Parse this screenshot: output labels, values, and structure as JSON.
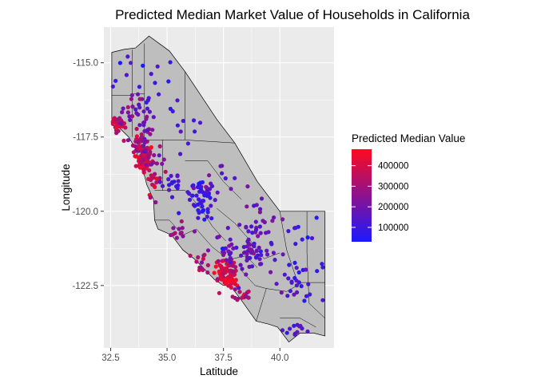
{
  "chart_data": {
    "type": "scatter",
    "title": "Predicted Median Market Value of Households in California",
    "xlabel": "Latitude",
    "ylabel": "Longitude",
    "xlim": [
      32.2,
      42.4
    ],
    "ylim": [
      -124.6,
      -113.8
    ],
    "y_reversed": true,
    "x_ticks": [
      "32.5",
      "35.0",
      "37.5",
      "40.0"
    ],
    "x_tick_values": [
      32.5,
      35.0,
      37.5,
      40.0
    ],
    "y_ticks": [
      "-115.0",
      "-117.5",
      "-120.0",
      "-122.5"
    ],
    "y_tick_values": [
      -115.0,
      -117.5,
      -120.0,
      -122.5
    ],
    "grid": true,
    "legend": {
      "title": "Predicted Median Value",
      "position": "right",
      "labels": [
        "400000",
        "300000",
        "200000",
        "100000"
      ],
      "values": [
        400000,
        300000,
        200000,
        100000
      ],
      "min": 30000,
      "max": 480000,
      "color_low": "#1a1aff",
      "color_high": "#ff0a1e"
    },
    "background_map": {
      "fill": "#bebebe",
      "stroke": "#000000",
      "outline": [
        [
          32.55,
          -114.65
        ],
        [
          33.1,
          -114.55
        ],
        [
          33.6,
          -114.5
        ],
        [
          34.2,
          -114.1
        ],
        [
          35.1,
          -114.6
        ],
        [
          35.8,
          -115.3
        ],
        [
          36.5,
          -116.1
        ],
        [
          37.2,
          -116.9
        ],
        [
          38.0,
          -117.7
        ],
        [
          39.0,
          -119.0
        ],
        [
          40.0,
          -120.0
        ],
        [
          41.0,
          -120.0
        ],
        [
          42.0,
          -120.0
        ],
        [
          42.0,
          -121.2
        ],
        [
          42.0,
          -122.5
        ],
        [
          42.0,
          -123.5
        ],
        [
          42.0,
          -124.2
        ],
        [
          41.5,
          -124.1
        ],
        [
          40.9,
          -124.1
        ],
        [
          40.4,
          -124.4
        ],
        [
          39.9,
          -123.9
        ],
        [
          39.5,
          -123.8
        ],
        [
          38.95,
          -123.7
        ],
        [
          38.3,
          -123.0
        ],
        [
          37.8,
          -122.5
        ],
        [
          37.5,
          -122.5
        ],
        [
          37.1,
          -122.3
        ],
        [
          36.6,
          -121.9
        ],
        [
          36.2,
          -121.6
        ],
        [
          35.7,
          -121.3
        ],
        [
          35.2,
          -120.8
        ],
        [
          34.6,
          -120.6
        ],
        [
          34.45,
          -120.3
        ],
        [
          34.4,
          -119.6
        ],
        [
          34.1,
          -119.1
        ],
        [
          34.0,
          -118.8
        ],
        [
          33.8,
          -118.4
        ],
        [
          33.6,
          -117.9
        ],
        [
          33.3,
          -117.5
        ],
        [
          32.9,
          -117.2
        ],
        [
          32.55,
          -117.1
        ]
      ],
      "county_lines": [
        [
          [
            32.55,
            -116.1
          ],
          [
            33.45,
            -116.1
          ]
        ],
        [
          [
            33.45,
            -114.55
          ],
          [
            33.45,
            -117.5
          ]
        ],
        [
          [
            33.45,
            -116.05
          ],
          [
            34.0,
            -116.05
          ]
        ],
        [
          [
            34.0,
            -114.35
          ],
          [
            34.0,
            -117.5
          ]
        ],
        [
          [
            35.8,
            -115.3
          ],
          [
            35.8,
            -117.6
          ]
        ],
        [
          [
            34.0,
            -117.6
          ],
          [
            35.8,
            -117.6
          ]
        ],
        [
          [
            34.8,
            -117.6
          ],
          [
            34.8,
            -119.3
          ]
        ],
        [
          [
            34.8,
            -119.3
          ],
          [
            35.8,
            -119.3
          ]
        ],
        [
          [
            35.8,
            -117.6
          ],
          [
            38.0,
            -117.7
          ]
        ],
        [
          [
            35.8,
            -118.3
          ],
          [
            36.8,
            -118.3
          ],
          [
            37.5,
            -119.0
          ],
          [
            38.3,
            -119.6
          ]
        ],
        [
          [
            34.45,
            -119.3
          ],
          [
            34.8,
            -119.3
          ]
        ],
        [
          [
            34.45,
            -120.3
          ],
          [
            35.1,
            -120.3
          ],
          [
            35.7,
            -120.8
          ],
          [
            36.3,
            -120.6
          ]
        ],
        [
          [
            35.8,
            -119.3
          ],
          [
            36.5,
            -119.9
          ],
          [
            37.0,
            -120.5
          ],
          [
            37.6,
            -121.0
          ]
        ],
        [
          [
            36.3,
            -120.6
          ],
          [
            37.0,
            -121.2
          ],
          [
            37.5,
            -121.5
          ]
        ],
        [
          [
            38.0,
            -120.4
          ],
          [
            38.7,
            -121.0
          ],
          [
            39.3,
            -121.6
          ],
          [
            40.0,
            -121.4
          ]
        ],
        [
          [
            37.2,
            -119.9
          ],
          [
            38.0,
            -120.4
          ]
        ],
        [
          [
            38.3,
            -122.0
          ],
          [
            38.9,
            -122.5
          ],
          [
            39.4,
            -122.6
          ]
        ],
        [
          [
            39.4,
            -122.6
          ],
          [
            40.3,
            -122.7
          ],
          [
            41.0,
            -122.4
          ],
          [
            42.0,
            -122.4
          ]
        ],
        [
          [
            40.0,
            -120.0
          ],
          [
            40.3,
            -121.3
          ],
          [
            40.7,
            -122.2
          ]
        ],
        [
          [
            41.2,
            -120.0
          ],
          [
            41.2,
            -121.4
          ],
          [
            41.3,
            -123.1
          ],
          [
            42.0,
            -123.6
          ]
        ],
        [
          [
            40.0,
            -123.6
          ],
          [
            40.9,
            -123.6
          ],
          [
            41.6,
            -123.9
          ]
        ],
        [
          [
            38.95,
            -123.7
          ],
          [
            39.4,
            -122.6
          ]
        ],
        [
          [
            37.4,
            -122.1
          ],
          [
            37.9,
            -121.6
          ],
          [
            38.5,
            -121.5
          ],
          [
            39.0,
            -121.9
          ]
        ]
      ]
    },
    "point_clusters": [
      {
        "lat": 32.8,
        "lon": -117.05,
        "sd_lat": 0.15,
        "sd_lon": 0.12,
        "n": 28,
        "value": 360000,
        "spread": 60000
      },
      {
        "lat": 33.1,
        "lon": -116.8,
        "sd_lat": 0.25,
        "sd_lon": 0.4,
        "n": 14,
        "value": 270000,
        "spread": 60000
      },
      {
        "lat": 33.75,
        "lon": -117.85,
        "sd_lat": 0.15,
        "sd_lon": 0.25,
        "n": 30,
        "value": 320000,
        "spread": 60000
      },
      {
        "lat": 33.95,
        "lon": -118.35,
        "sd_lat": 0.15,
        "sd_lon": 0.15,
        "n": 45,
        "value": 430000,
        "spread": 40000
      },
      {
        "lat": 34.1,
        "lon": -118.1,
        "sd_lat": 0.12,
        "sd_lon": 0.25,
        "n": 40,
        "value": 330000,
        "spread": 60000
      },
      {
        "lat": 34.1,
        "lon": -117.35,
        "sd_lat": 0.15,
        "sd_lon": 0.3,
        "n": 22,
        "value": 220000,
        "spread": 50000
      },
      {
        "lat": 33.8,
        "lon": -116.6,
        "sd_lat": 0.2,
        "sd_lon": 0.4,
        "n": 14,
        "value": 190000,
        "spread": 50000
      },
      {
        "lat": 34.5,
        "lon": -118.4,
        "sd_lat": 0.3,
        "sd_lon": 0.3,
        "n": 16,
        "value": 250000,
        "spread": 60000
      },
      {
        "lat": 34.35,
        "lon": -119.1,
        "sd_lat": 0.1,
        "sd_lon": 0.3,
        "n": 14,
        "value": 370000,
        "spread": 60000
      },
      {
        "lat": 35.2,
        "lon": -119.0,
        "sd_lat": 0.25,
        "sd_lon": 0.25,
        "n": 18,
        "value": 120000,
        "spread": 40000
      },
      {
        "lat": 35.4,
        "lon": -120.6,
        "sd_lat": 0.25,
        "sd_lon": 0.2,
        "n": 12,
        "value": 260000,
        "spread": 60000
      },
      {
        "lat": 36.6,
        "lon": -119.7,
        "sd_lat": 0.25,
        "sd_lon": 0.35,
        "n": 38,
        "value": 100000,
        "spread": 40000
      },
      {
        "lat": 36.2,
        "lon": -119.3,
        "sd_lat": 0.3,
        "sd_lon": 0.3,
        "n": 16,
        "value": 110000,
        "spread": 40000
      },
      {
        "lat": 36.6,
        "lon": -121.7,
        "sd_lat": 0.2,
        "sd_lon": 0.2,
        "n": 14,
        "value": 310000,
        "spread": 60000
      },
      {
        "lat": 37.4,
        "lon": -121.95,
        "sd_lat": 0.15,
        "sd_lon": 0.2,
        "n": 30,
        "value": 400000,
        "spread": 50000
      },
      {
        "lat": 37.75,
        "lon": -122.3,
        "sd_lat": 0.15,
        "sd_lon": 0.12,
        "n": 45,
        "value": 430000,
        "spread": 40000
      },
      {
        "lat": 37.9,
        "lon": -122.0,
        "sd_lat": 0.15,
        "sd_lon": 0.2,
        "n": 25,
        "value": 340000,
        "spread": 60000
      },
      {
        "lat": 37.7,
        "lon": -121.2,
        "sd_lat": 0.3,
        "sd_lon": 0.3,
        "n": 22,
        "value": 180000,
        "spread": 50000
      },
      {
        "lat": 38.5,
        "lon": -121.4,
        "sd_lat": 0.2,
        "sd_lon": 0.25,
        "n": 25,
        "value": 190000,
        "spread": 50000
      },
      {
        "lat": 38.4,
        "lon": -122.7,
        "sd_lat": 0.2,
        "sd_lon": 0.15,
        "n": 16,
        "value": 300000,
        "spread": 60000
      },
      {
        "lat": 39.2,
        "lon": -121.5,
        "sd_lat": 0.4,
        "sd_lon": 0.4,
        "n": 20,
        "value": 140000,
        "spread": 40000
      },
      {
        "lat": 39.3,
        "lon": -120.4,
        "sd_lat": 0.4,
        "sd_lon": 0.35,
        "n": 14,
        "value": 170000,
        "spread": 40000
      },
      {
        "lat": 40.5,
        "lon": -122.3,
        "sd_lat": 0.35,
        "sd_lon": 0.3,
        "n": 16,
        "value": 120000,
        "spread": 40000
      },
      {
        "lat": 40.7,
        "lon": -124.0,
        "sd_lat": 0.3,
        "sd_lon": 0.1,
        "n": 12,
        "value": 130000,
        "spread": 40000
      },
      {
        "lat": 41.3,
        "lon": -122.6,
        "sd_lat": 0.4,
        "sd_lon": 0.6,
        "n": 12,
        "value": 90000,
        "spread": 30000
      },
      {
        "lat": 40.8,
        "lon": -120.8,
        "sd_lat": 0.6,
        "sd_lon": 0.5,
        "n": 10,
        "value": 90000,
        "spread": 30000
      },
      {
        "lat": 37.5,
        "lon": -118.8,
        "sd_lat": 0.5,
        "sd_lon": 0.4,
        "n": 10,
        "value": 160000,
        "spread": 50000
      },
      {
        "lat": 38.6,
        "lon": -120.5,
        "sd_lat": 0.3,
        "sd_lon": 0.3,
        "n": 14,
        "value": 150000,
        "spread": 40000
      },
      {
        "lat": 35.8,
        "lon": -117.2,
        "sd_lat": 0.4,
        "sd_lon": 0.6,
        "n": 10,
        "value": 110000,
        "spread": 40000
      },
      {
        "lat": 34.6,
        "lon": -115.8,
        "sd_lat": 0.5,
        "sd_lon": 0.6,
        "n": 10,
        "value": 120000,
        "spread": 40000
      },
      {
        "lat": 33.1,
        "lon": -115.3,
        "sd_lat": 0.4,
        "sd_lon": 0.4,
        "n": 8,
        "value": 90000,
        "spread": 30000
      }
    ]
  }
}
